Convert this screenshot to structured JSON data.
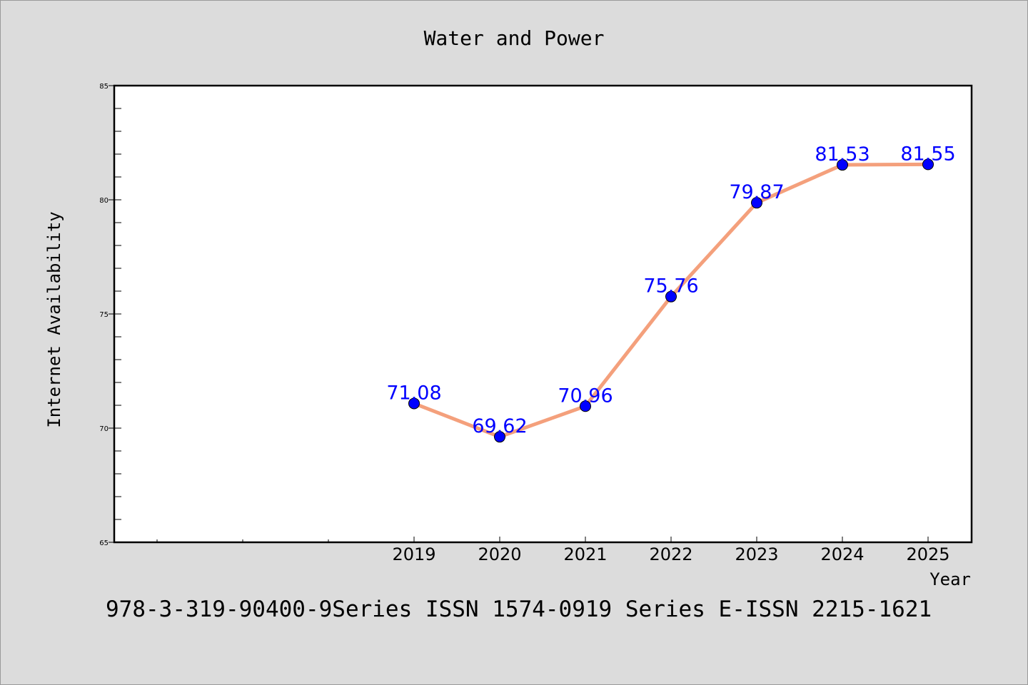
{
  "chart_data": {
    "type": "line",
    "title": "Water and Power",
    "xlabel": "Year",
    "ylabel": "Internet Availability",
    "x": [
      "2019",
      "2020",
      "2021",
      "2022",
      "2023",
      "2024",
      "2025"
    ],
    "series": [
      {
        "values": [
          71.08,
          69.62,
          70.96,
          75.76,
          79.87,
          81.53,
          81.55
        ]
      }
    ],
    "data_labels": [
      "71.08",
      "69.62",
      "70.96",
      "75.76",
      "79.87",
      "81.53",
      "81.55"
    ],
    "ylim": [
      65,
      85
    ],
    "yticks": [
      65,
      70,
      75,
      80,
      85
    ],
    "grid": false,
    "colors": {
      "line": "#f4a07c",
      "marker": "#0000ff",
      "label": "#0000ff",
      "background": "#dcdcdc",
      "plot_bg": "#ffffff"
    }
  },
  "footer": "978-3-319-90400-9Series ISSN 1574-0919 Series E-ISSN 2215-1621"
}
